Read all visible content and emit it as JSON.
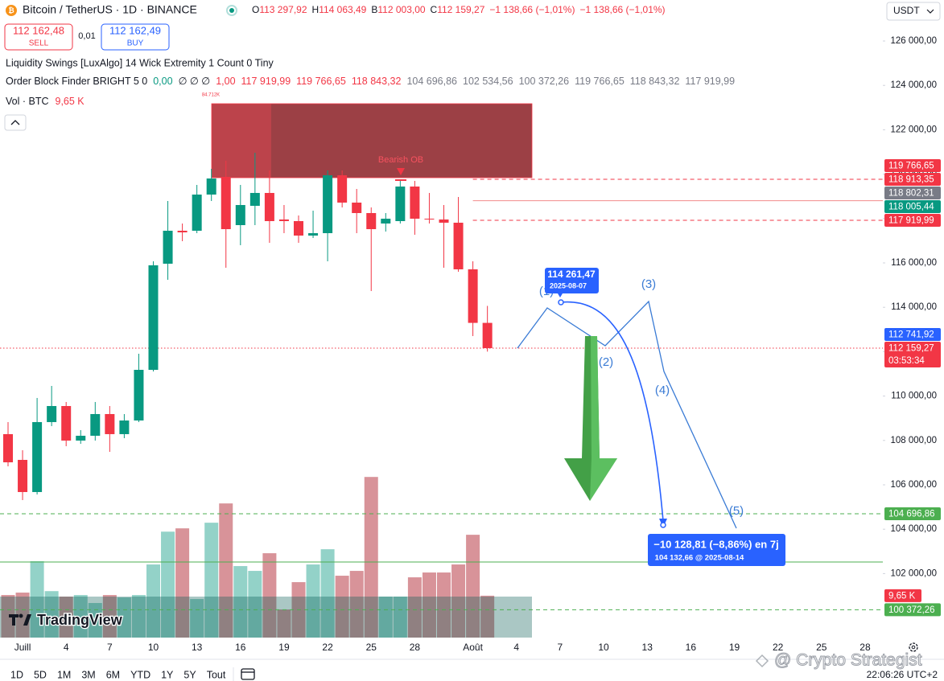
{
  "header": {
    "symbol": "Bitcoin / TetherUS · 1D · BINANCE",
    "ohlc": [
      {
        "key": "O",
        "value": "113 297,92"
      },
      {
        "key": "H",
        "value": "114 063,49"
      },
      {
        "key": "B",
        "value": "112 003,00"
      },
      {
        "key": "C",
        "value": "112 159,27"
      }
    ],
    "changes": [
      "−1 138,66 (−1,01%)",
      "−1 138,66 (−1,01%)"
    ]
  },
  "trade": {
    "sell_price": "112 162,48",
    "sell": "SELL",
    "spread": "0,01",
    "buy_price": "112 162,49",
    "buy": "BUY"
  },
  "currency": "USDT",
  "indicators": {
    "liquidity_swings": "Liquidity Swings [LuxAlgo] 14 Wick Extremity 1 Count 0 Tiny",
    "order_block": {
      "name": "Order Block Finder BRIGHT 5 0",
      "values": [
        {
          "text": "0,00",
          "color": "#089981"
        },
        {
          "text": "∅ ∅ ∅",
          "color": "#131722"
        },
        {
          "text": "1,00",
          "color": "#f23645"
        },
        {
          "text": "117 919,99",
          "color": "#f23645"
        },
        {
          "text": "119 766,65",
          "color": "#f23645"
        },
        {
          "text": "118 843,32",
          "color": "#f23645"
        },
        {
          "text": "104 696,86",
          "color": "#787b86"
        },
        {
          "text": "102 534,56",
          "color": "#787b86"
        },
        {
          "text": "100 372,26",
          "color": "#787b86"
        },
        {
          "text": "119 766,65",
          "color": "#787b86"
        },
        {
          "text": "118 843,32",
          "color": "#787b86"
        },
        {
          "text": "117 919,99",
          "color": "#787b86"
        }
      ]
    },
    "volume": {
      "name": "Vol · BTC",
      "value": "9,65 K"
    },
    "swing_label": "84.712K"
  },
  "chart_data": {
    "type": "candlestick",
    "categories": [
      null,
      "Juill",
      null,
      null,
      "4",
      null,
      null,
      "7",
      null,
      null,
      "10",
      null,
      null,
      "13",
      null,
      null,
      "16",
      null,
      null,
      "19",
      null,
      null,
      "22",
      null,
      null,
      "25",
      null,
      null,
      "28",
      null,
      null,
      null,
      "Août",
      null,
      null,
      "4",
      null,
      null,
      "7",
      null,
      null,
      "10",
      null,
      null,
      "13",
      null,
      null,
      "16",
      null,
      null,
      "19",
      null,
      null,
      "22",
      null,
      null,
      "25",
      null,
      null,
      "28"
    ],
    "open": [
      108284,
      107124,
      105675,
      108827,
      109551,
      107994,
      108211,
      109189,
      108284,
      108899,
      111182,
      115964,
      117450,
      117450,
      119080,
      119877,
      117703,
      118573,
      119153,
      117957,
      117884,
      117232,
      117341,
      119950,
      118718,
      118247,
      117776,
      117884,
      119442,
      117993,
      117957,
      117812,
      115711,
      113297.92,
      null,
      null,
      null,
      null,
      null,
      null,
      null,
      null,
      null,
      null,
      null,
      null,
      null,
      null,
      null,
      null,
      null,
      null,
      null,
      null,
      null,
      null,
      null,
      null,
      null,
      null
    ],
    "high": [
      108827,
      107559,
      109914,
      110457,
      109733,
      108465,
      109733,
      109551,
      109189,
      111907,
      116073,
      118790,
      117776,
      119515,
      120239,
      120602,
      119515,
      120964,
      120167,
      118609,
      118138,
      118355,
      120167,
      120167,
      119334,
      118500,
      118247,
      119696,
      119696,
      119153,
      118609,
      118971,
      116073,
      114063.49,
      null,
      null,
      null,
      null,
      null,
      null,
      null,
      null,
      null,
      null,
      null,
      null,
      null,
      null,
      null,
      null,
      null,
      null,
      null,
      null,
      null,
      null,
      null,
      null,
      null,
      null
    ],
    "low": [
      106834,
      105312,
      105566,
      108646,
      107740,
      107849,
      107994,
      107486,
      108102,
      108827,
      111109,
      115240,
      116979,
      117341,
      118790,
      115783,
      116798,
      117703,
      116906,
      117341,
      116906,
      117124,
      116073,
      118500,
      117341,
      114733,
      117413,
      117776,
      117269,
      117776,
      115783,
      115602,
      112704,
      112003,
      null,
      null,
      null,
      null,
      null,
      null,
      null,
      null,
      null,
      null,
      null,
      null,
      null,
      null,
      null,
      null,
      null,
      null,
      null,
      null,
      null,
      null,
      null,
      null,
      null,
      null
    ],
    "close": [
      107015,
      105675,
      108827,
      109551,
      107994,
      108211,
      109189,
      108284,
      108899,
      111182,
      115892,
      117450,
      117377,
      119080,
      119805,
      117522,
      118609,
      119153,
      117884,
      117884,
      117232,
      117341,
      119950,
      118718,
      118247,
      117522,
      117993,
      119442,
      117993,
      117957,
      117812,
      115711,
      113297.93,
      112159.27,
      null,
      null,
      null,
      null,
      null,
      null,
      null,
      null,
      null,
      null,
      null,
      null,
      null,
      null,
      null,
      null,
      null,
      null,
      null,
      null,
      null,
      null,
      null,
      null,
      null,
      null
    ],
    "volume": [
      9800,
      10360,
      17600,
      10700,
      9440,
      9800,
      7960,
      9800,
      9250,
      9800,
      16840,
      24400,
      25160,
      8880,
      26460,
      30900,
      16470,
      15360,
      19430,
      6480,
      12770,
      16840,
      20350,
      14250,
      15360,
      37000,
      9440,
      9440,
      13880,
      14990,
      14990,
      16840,
      23680,
      9650,
      null,
      null,
      null,
      null,
      null,
      null,
      null,
      null,
      null,
      null,
      null,
      null,
      null,
      null,
      null,
      null,
      null,
      null,
      null,
      null,
      null,
      null,
      null,
      null,
      null,
      null
    ],
    "colors": {
      "up": "#089981",
      "down": "#f23645"
    },
    "volume_colors": {
      "up": "#08998170",
      "down": "#b2283380"
    },
    "volume_ylim": [
      0,
      40000
    ],
    "volume_label": {
      "text": "9,65 K",
      "color": "#f23645"
    },
    "ylim": [
      99116,
      127848
    ],
    "yticks": [
      {
        "value": 102000,
        "label": "102 000,00"
      },
      {
        "value": 104000,
        "label": "104 000,00"
      },
      {
        "value": 106000,
        "label": "106 000,00"
      },
      {
        "value": 108000,
        "label": "108 000,00"
      },
      {
        "value": 110000,
        "label": "110 000,00"
      },
      {
        "value": 112000,
        "label": "112 000,00"
      },
      {
        "value": 114000,
        "label": "114 000,00"
      },
      {
        "value": 116000,
        "label": "116 000,00"
      },
      {
        "value": 118000,
        "label": "118 000,00"
      },
      {
        "value": 120000,
        "label": "120 000,00"
      },
      {
        "value": 122000,
        "label": "122 000,00"
      },
      {
        "value": 124000,
        "label": "124 000,00"
      },
      {
        "value": 126000,
        "label": "126 000,00"
      }
    ],
    "levels": [
      {
        "value": 119766.65,
        "label": "119 766,65",
        "color": "#f23645",
        "line": "dashed",
        "extend": "right"
      },
      {
        "value": 118913.35,
        "label": "118 913,35",
        "color": "#f23645"
      },
      {
        "value": 118802.31,
        "label": "118 802,31",
        "color": "#787b86",
        "line": "solid",
        "line_color": "#f28b8b",
        "extend": "right"
      },
      {
        "value": 118005.44,
        "label": "118 005,44",
        "color": "#089981"
      },
      {
        "value": 117919.99,
        "label": "117 919,99",
        "color": "#f23645",
        "line": "dashed",
        "extend": "right"
      },
      {
        "value": 112741.92,
        "label": "112 741,92",
        "color": "#2962ff"
      },
      {
        "value": 112159.27,
        "label": "112 159,27",
        "color": "#f23645",
        "line": "dotted",
        "countdown": "03:53:34"
      },
      {
        "value": 104696.86,
        "label": "104 696,86",
        "color": "#4caf50",
        "line": "dashed"
      },
      {
        "value": 102520,
        "color": "#4caf50",
        "line": "solid"
      },
      {
        "value": 100372.26,
        "label": "100 372,26",
        "color": "#4caf50",
        "line": "dashed"
      }
    ]
  },
  "annotations": {
    "bearish_ob": "Bearish OB",
    "waves": [
      "(1)",
      "(2)",
      "(3)",
      "(4)",
      "(5)"
    ],
    "point_price": "114 261,47",
    "point_date": "2025-08-07",
    "projection": "−10 128,81 (−8,86%) en 7j",
    "projection_detail": "104 132,66 @ 2025-08-14"
  },
  "branding": "TradingView",
  "toolbar": {
    "ranges": [
      "1D",
      "5D",
      "1M",
      "3M",
      "6M",
      "YTD",
      "1Y",
      "5Y",
      "Tout"
    ],
    "time": "22:06:26 UTC+2"
  },
  "watermark": "@ Crypto Strategist"
}
